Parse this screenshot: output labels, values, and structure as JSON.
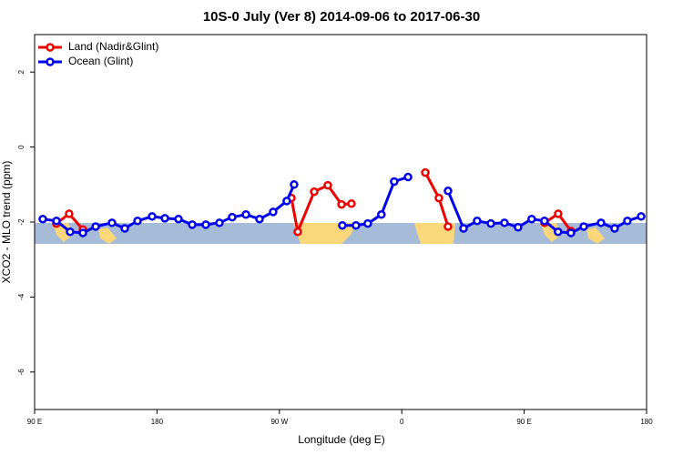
{
  "chart_data": {
    "type": "line",
    "title": "10S-0 July (Ver 8)   2014-09-06 to 2017-06-30",
    "x_label": "Longitude (deg E)",
    "y_label": "XCO2 - MLO trend (ppm)",
    "xlim": [
      90,
      540
    ],
    "ylim": [
      -7,
      3
    ],
    "xticks": [
      {
        "value": 90,
        "label": "90 E"
      },
      180,
      {
        "value": 270,
        "label": "90 W"
      },
      {
        "value": 360,
        "label": "0"
      },
      {
        "value": 450,
        "label": "90 E"
      },
      {
        "value": 540,
        "label": "180"
      }
    ],
    "yticks": [
      -6,
      -4,
      -2,
      0,
      2
    ],
    "legend": "top-left",
    "series": [
      {
        "name": "Land (Nadir&Glint)",
        "color": "#ee0000",
        "x": [
          106,
          115.4,
          125.5,
          200,
          278.8,
          283.5,
          295.6,
          305.6,
          315.7,
          323,
          350,
          377.3,
          387.3,
          394,
          430,
          465,
          475,
          484.4
        ],
        "values": [
          -2.04,
          -1.78,
          -2.2,
          null,
          -1.36,
          -2.26,
          -1.19,
          -1.02,
          -1.53,
          -1.51,
          null,
          -0.68,
          -1.36,
          -2.12,
          null,
          -2.02,
          -1.78,
          -2.24
        ]
      },
      {
        "name": "Ocean (Glint)",
        "color": "#0000ee",
        "x": [
          96,
          106.1,
          116.1,
          125.5,
          134.9,
          146.9,
          156.3,
          165.7,
          176.4,
          185.8,
          195.8,
          205.9,
          215.9,
          225.9,
          235.3,
          245.4,
          255.4,
          265.4,
          275.4,
          280.8,
          298,
          316.3,
          326.3,
          335,
          345,
          354.4,
          364.6,
          380,
          394,
          405.4,
          415.4,
          425.5,
          435.5,
          445.5,
          455.5,
          464.9,
          474.9,
          484.4,
          493.8,
          506.5,
          516.5,
          525.9,
          536
        ],
        "values": [
          -1.92,
          -1.97,
          -2.26,
          -2.29,
          -2.12,
          -2.02,
          -2.17,
          -1.97,
          -1.85,
          -1.9,
          -1.92,
          -2.07,
          -2.07,
          -2.02,
          -1.87,
          -1.8,
          -1.92,
          -1.73,
          -1.44,
          -1.0,
          null,
          -2.09,
          -2.09,
          -2.04,
          -1.8,
          -0.92,
          -0.8,
          null,
          -1.17,
          -2.17,
          -1.97,
          -2.04,
          -2.02,
          -2.14,
          -1.92,
          -1.97,
          -2.26,
          -2.29,
          -2.12,
          -2.02,
          -2.17,
          -1.97,
          -1.85
        ]
      }
    ]
  }
}
